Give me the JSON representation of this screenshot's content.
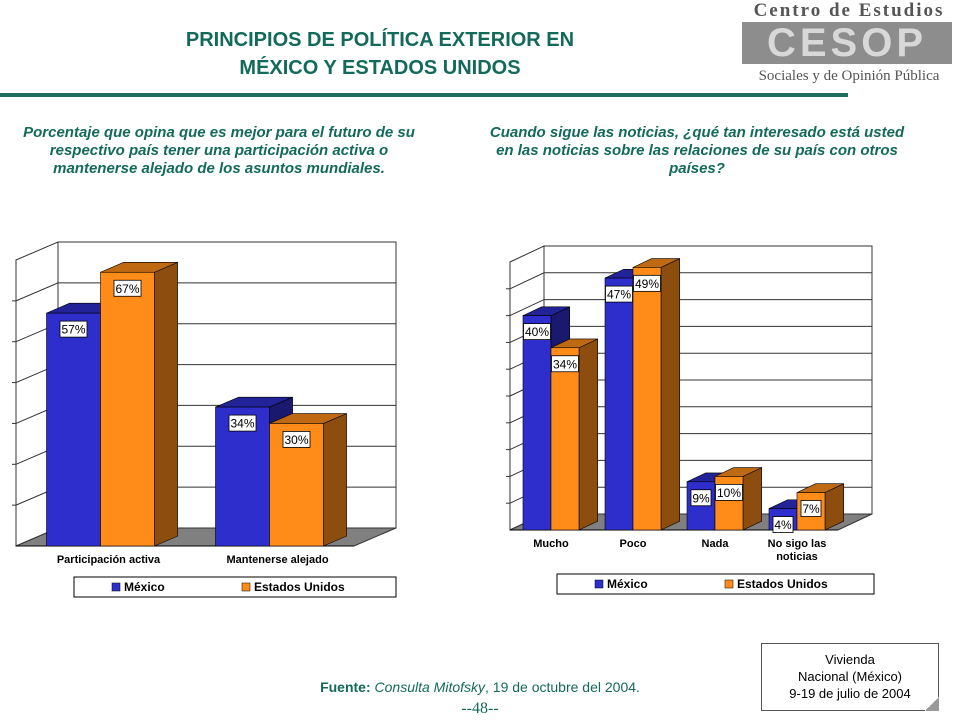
{
  "header": {
    "title_line1": "PRINCIPIOS DE POLÍTICA EXTERIOR EN",
    "title_line2": "MÉXICO Y ESTADOS UNIDOS"
  },
  "logo": {
    "top": "Centro de Estudios",
    "mark": "CESOP",
    "bottom": "Sociales y de Opinión Pública"
  },
  "colors": {
    "mexico": "#2e2ecc",
    "usa": "#ff8c19",
    "title": "#136a5a"
  },
  "chart_data": [
    {
      "type": "bar",
      "title": "Porcentaje que opina que es mejor para el futuro de su respectivo país tener una participación activa o mantenerse alejado de los asuntos mundiales.",
      "categories": [
        "Participación activa",
        "Mantenerse alejado"
      ],
      "series": [
        {
          "name": "México",
          "values": [
            57,
            34
          ],
          "labels": [
            "57%",
            "34%"
          ]
        },
        {
          "name": "Estados Unidos",
          "values": [
            67,
            30
          ],
          "labels": [
            "67%",
            "30%"
          ]
        }
      ],
      "ylim": [
        0,
        70
      ],
      "grid": true,
      "legend": "bottom"
    },
    {
      "type": "bar",
      "title": "Cuando sigue las noticias, ¿qué tan interesado está usted en las noticias sobre las relaciones de su país con otros países?",
      "categories": [
        "Mucho",
        "Poco",
        "Nada",
        "No sigo las noticias"
      ],
      "series": [
        {
          "name": "México",
          "values": [
            40,
            47,
            9,
            4
          ],
          "labels": [
            "40%",
            "47%",
            "9%",
            "4%"
          ]
        },
        {
          "name": "Estados Unidos",
          "values": [
            34,
            49,
            10,
            7
          ],
          "labels": [
            "34%",
            "49%",
            "10%",
            "7%"
          ]
        }
      ],
      "ylim": [
        0,
        50
      ],
      "grid": true,
      "legend": "bottom"
    }
  ],
  "source": {
    "label": "Fuente:",
    "name": "Consulta Mitofsky",
    "date": ", 19 de octubre del 2004."
  },
  "page_number": "--48--",
  "note": {
    "line1": "Vivienda",
    "line2": "Nacional (México)",
    "line3": "9-19 de julio de 2004"
  }
}
